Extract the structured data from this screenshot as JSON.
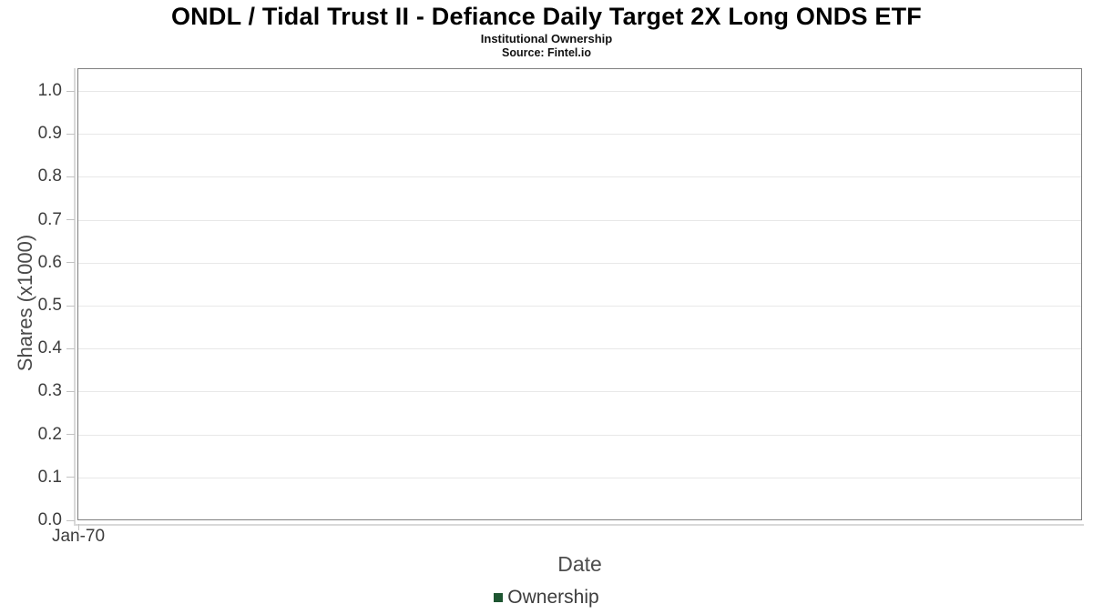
{
  "header": {
    "title": "ONDL / Tidal Trust II - Defiance Daily Target 2X Long ONDS ETF",
    "subtitle": "Institutional Ownership",
    "source": "Source: Fintel.io"
  },
  "chart_data": {
    "type": "line",
    "title": "ONDL / Tidal Trust II - Defiance Daily Target 2X Long ONDS ETF",
    "subtitle": "Institutional Ownership",
    "source": "Source: Fintel.io",
    "xlabel": "Date",
    "ylabel": "Shares (x1000)",
    "x_tick_labels": [
      "Jan-70"
    ],
    "y_tick_labels": [
      "0.0",
      "0.1",
      "0.2",
      "0.3",
      "0.4",
      "0.5",
      "0.6",
      "0.7",
      "0.8",
      "0.9",
      "1.0"
    ],
    "ylim": [
      0,
      1.05
    ],
    "grid": "horizontal",
    "legend_position": "bottom",
    "series": [
      {
        "name": "Ownership",
        "color": "#1e5631",
        "x": [],
        "values": []
      }
    ]
  },
  "legend": {
    "items": [
      {
        "label": "Ownership",
        "color": "#1e5631"
      }
    ]
  },
  "colors": {
    "background": "#ffffff",
    "plot_border": "#7f7f7f",
    "gridline": "#e8e8e8",
    "axis_line": "#d9d9d9",
    "tick": "#c2c2c2",
    "tick_label": "#3d3d3d",
    "axis_title": "#4d4d4d",
    "title_text": "#000000",
    "legend_text": "#3d3d3d"
  }
}
